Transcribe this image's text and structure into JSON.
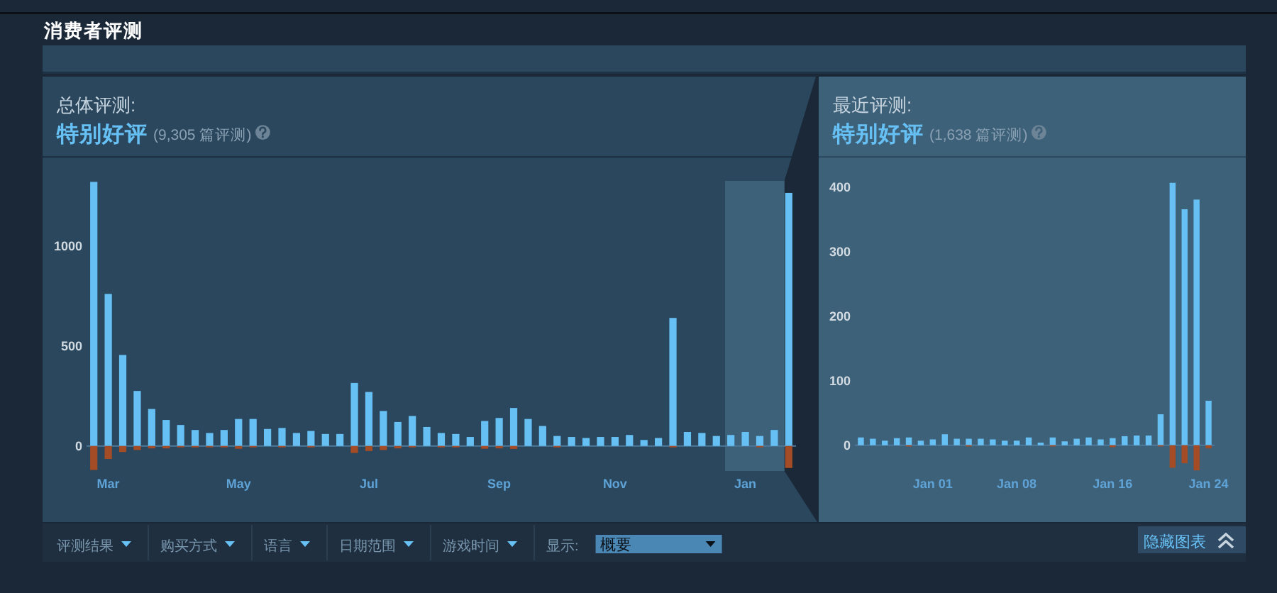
{
  "chart_data": [
    {
      "type": "other",
      "title": "消费者评测",
      "annotations": [
        "评测结果",
        "购买方式",
        "语言",
        "日期范围",
        "游戏时间",
        "显示:",
        "概要",
        "隐藏图表"
      ]
    },
    {
      "type": "bar",
      "title": "总体评测:",
      "subtitle": "特别好评",
      "annotations": [
        "(9,305 篇评测)"
      ],
      "stacked": true,
      "categories": [
        null,
        "Mar",
        null,
        null,
        null,
        null,
        null,
        null,
        null,
        null,
        "May",
        null,
        null,
        null,
        null,
        null,
        null,
        null,
        null,
        "Jul",
        null,
        null,
        null,
        null,
        null,
        null,
        null,
        null,
        "Sep",
        null,
        null,
        null,
        null,
        null,
        null,
        null,
        "Nov",
        null,
        null,
        null,
        null,
        null,
        null,
        null,
        null,
        "Jan",
        null,
        null,
        null
      ],
      "series": [
        {
          "color": "#66c0f4",
          "values": [
            1320,
            760,
            455,
            275,
            185,
            130,
            105,
            80,
            65,
            80,
            135,
            135,
            85,
            90,
            65,
            75,
            60,
            60,
            315,
            270,
            175,
            120,
            150,
            95,
            65,
            60,
            45,
            125,
            140,
            190,
            135,
            100,
            50,
            45,
            40,
            45,
            45,
            55,
            30,
            40,
            640,
            70,
            65,
            50,
            55,
            70,
            50,
            80,
            1265
          ]
        },
        {
          "color": "#a34c25",
          "values": [
            -120,
            -65,
            -30,
            -20,
            -12,
            -12,
            -7,
            -7,
            -7,
            -7,
            -14,
            -7,
            null,
            -7,
            null,
            -7,
            null,
            null,
            -35,
            -25,
            -20,
            -12,
            -7,
            null,
            -7,
            -7,
            null,
            -14,
            -12,
            -15,
            null,
            null,
            -7,
            null,
            null,
            null,
            null,
            null,
            null,
            null,
            -7,
            null,
            null,
            null,
            null,
            null,
            -7,
            null,
            -110
          ]
        }
      ],
      "ylim": [
        -125,
        1325
      ],
      "yticks": [
        0,
        500,
        1000
      ]
    },
    {
      "type": "bar",
      "title": "最近评测:",
      "subtitle": "特别好评",
      "annotations": [
        "(1,638 篇评测)"
      ],
      "stacked": true,
      "categories": [
        null,
        null,
        null,
        null,
        null,
        null,
        "Jan 01",
        null,
        null,
        null,
        null,
        null,
        null,
        "Jan 08",
        null,
        null,
        null,
        null,
        null,
        null,
        null,
        "Jan 16",
        null,
        null,
        null,
        null,
        null,
        null,
        null,
        "Jan 24"
      ],
      "series": [
        {
          "color": "#66c0f4",
          "values": [
            12,
            10,
            7,
            11,
            12,
            7,
            9,
            17,
            10,
            10,
            10,
            9,
            7,
            7,
            12,
            4,
            12,
            6,
            10,
            12,
            9,
            11,
            14,
            15,
            15,
            48,
            407,
            366,
            381,
            69
          ]
        },
        {
          "color": "#a34c25",
          "values": [
            null,
            null,
            null,
            null,
            -2,
            null,
            null,
            null,
            null,
            -2,
            null,
            null,
            null,
            null,
            null,
            null,
            -2,
            null,
            null,
            null,
            null,
            -3,
            null,
            null,
            null,
            -2,
            -35,
            -28,
            -39,
            -5
          ]
        }
      ],
      "ylim": [
        -40,
        410
      ],
      "yticks": [
        0,
        100,
        200,
        300,
        400
      ]
    }
  ]
}
